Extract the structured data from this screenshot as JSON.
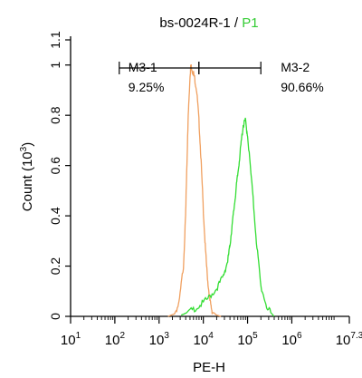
{
  "chart_data": {
    "type": "line",
    "title": {
      "sample": "bs-0024R-1",
      "separator": " / ",
      "gate": "P1"
    },
    "xlabel": "PE-H",
    "ylabel": "Count",
    "ylabel_unit": {
      "base": "(10",
      "exp": "3",
      "close": ")"
    },
    "x_scale": "log",
    "xlim": [
      1,
      7.3
    ],
    "ylim": [
      0,
      1.1
    ],
    "x_ticks": [
      {
        "value": 1,
        "base": "10",
        "exp": "1"
      },
      {
        "value": 2,
        "base": "10",
        "exp": "2"
      },
      {
        "value": 3,
        "base": "10",
        "exp": "3"
      },
      {
        "value": 4,
        "base": "10",
        "exp": "4"
      },
      {
        "value": 5,
        "base": "10",
        "exp": "5"
      },
      {
        "value": 6,
        "base": "10",
        "exp": "6"
      },
      {
        "value": 7.3,
        "base": "10",
        "exp": "7.3"
      }
    ],
    "y_ticks": [
      "0",
      "0.2",
      "0.4",
      "0.6",
      "0.8",
      "1",
      "1.1"
    ],
    "y_tick_values": [
      0,
      0.2,
      0.4,
      0.6,
      0.8,
      1.0,
      1.1
    ],
    "colors": {
      "series_1": "#f0a060",
      "series_2": "#33dd33",
      "gate_text": "#33cc33"
    },
    "series": [
      {
        "x": [
          3.2,
          3.35,
          3.45,
          3.55,
          3.6,
          3.62,
          3.66,
          3.7,
          3.72,
          3.75,
          3.8,
          3.85,
          3.9,
          3.95,
          4.0,
          4.05,
          4.1,
          4.15,
          4.2,
          4.3,
          4.4
        ],
        "y": [
          0,
          0.01,
          0.05,
          0.2,
          0.4,
          0.55,
          0.8,
          0.96,
          1.0,
          0.98,
          0.95,
          0.9,
          0.78,
          0.62,
          0.42,
          0.26,
          0.14,
          0.06,
          0.02,
          0.005,
          0
        ]
      },
      {
        "x": [
          3.5,
          3.7,
          3.9,
          4.1,
          4.3,
          4.45,
          4.55,
          4.6,
          4.65,
          4.7,
          4.75,
          4.8,
          4.85,
          4.9,
          4.95,
          5.0,
          5.1,
          5.2,
          5.3,
          5.45,
          5.6
        ],
        "y": [
          0.005,
          0.02,
          0.04,
          0.07,
          0.11,
          0.16,
          0.22,
          0.28,
          0.36,
          0.44,
          0.52,
          0.6,
          0.68,
          0.76,
          0.78,
          0.72,
          0.52,
          0.3,
          0.12,
          0.03,
          0
        ]
      }
    ],
    "markers": [
      {
        "label": "M3-1",
        "percent": "9.25%",
        "range": [
          2.1,
          3.9
        ]
      },
      {
        "label": "M3-2",
        "percent": "90.66%",
        "range": [
          3.9,
          5.3
        ]
      }
    ]
  }
}
